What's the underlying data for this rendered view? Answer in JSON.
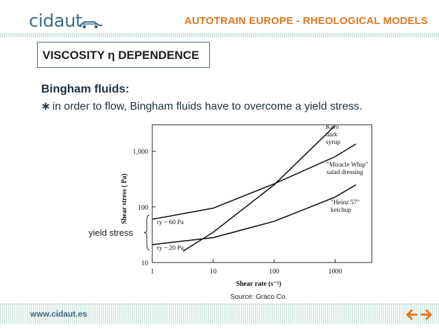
{
  "header": {
    "logo_text": "cidaut",
    "title": "AUTOTRAIN EUROPE - RHEOLOGICAL MODELS"
  },
  "slide": {
    "box_title": "VISCOSITY η DEPENDENCE",
    "subheading": "Bingham fluids:",
    "bullet_symbol": "∗",
    "bullet_text": "in order to flow, Bingham fluids have to overcome a yield stress.",
    "yield_label": "yield stress",
    "source": "Source: Graco Co."
  },
  "chart_data": {
    "type": "line",
    "xlabel": "Shear rate (s⁻¹)",
    "ylabel": "Shear stress ( Pa)",
    "x_scale": "log",
    "y_scale": "log",
    "x_ticks": [
      "1",
      "10",
      "100",
      "1000"
    ],
    "y_ticks": [
      "10",
      "100",
      "1,000"
    ],
    "xlim": [
      1,
      4000
    ],
    "ylim": [
      10,
      3000
    ],
    "grid": false,
    "series": [
      {
        "name": "Karo dark syrup",
        "label_lines": [
          "Karo",
          "dark",
          "syrup"
        ],
        "x": [
          3.2,
          10,
          100,
          1000
        ],
        "y": [
          16,
          35,
          250,
          2900
        ]
      },
      {
        "name": "\"Miracle Whip\" salad dressing",
        "label_lines": [
          "\"Miracle Whip\"",
          "salad dressing"
        ],
        "x": [
          1,
          10,
          100,
          1000,
          2200
        ],
        "y": [
          60,
          95,
          260,
          800,
          1350
        ]
      },
      {
        "name": "\"Heinz 57\" ketchup",
        "label_lines": [
          "\"Heinz 57\"",
          "ketchup"
        ],
        "x": [
          1,
          10,
          100,
          1000,
          2200
        ],
        "y": [
          21,
          28,
          55,
          150,
          250
        ]
      }
    ],
    "annotations": [
      {
        "text": "τy ~ 60 Pa",
        "y": 60
      },
      {
        "text": "τy ~ 20 Pa",
        "y": 20
      }
    ]
  },
  "footer": {
    "url": "www.cidaut.es",
    "nav_back_icon": "arrow-left-icon",
    "nav_forward_icon": "arrow-right-icon",
    "accent_color": "#e0761f",
    "stripe_color": "#d9ece6"
  }
}
